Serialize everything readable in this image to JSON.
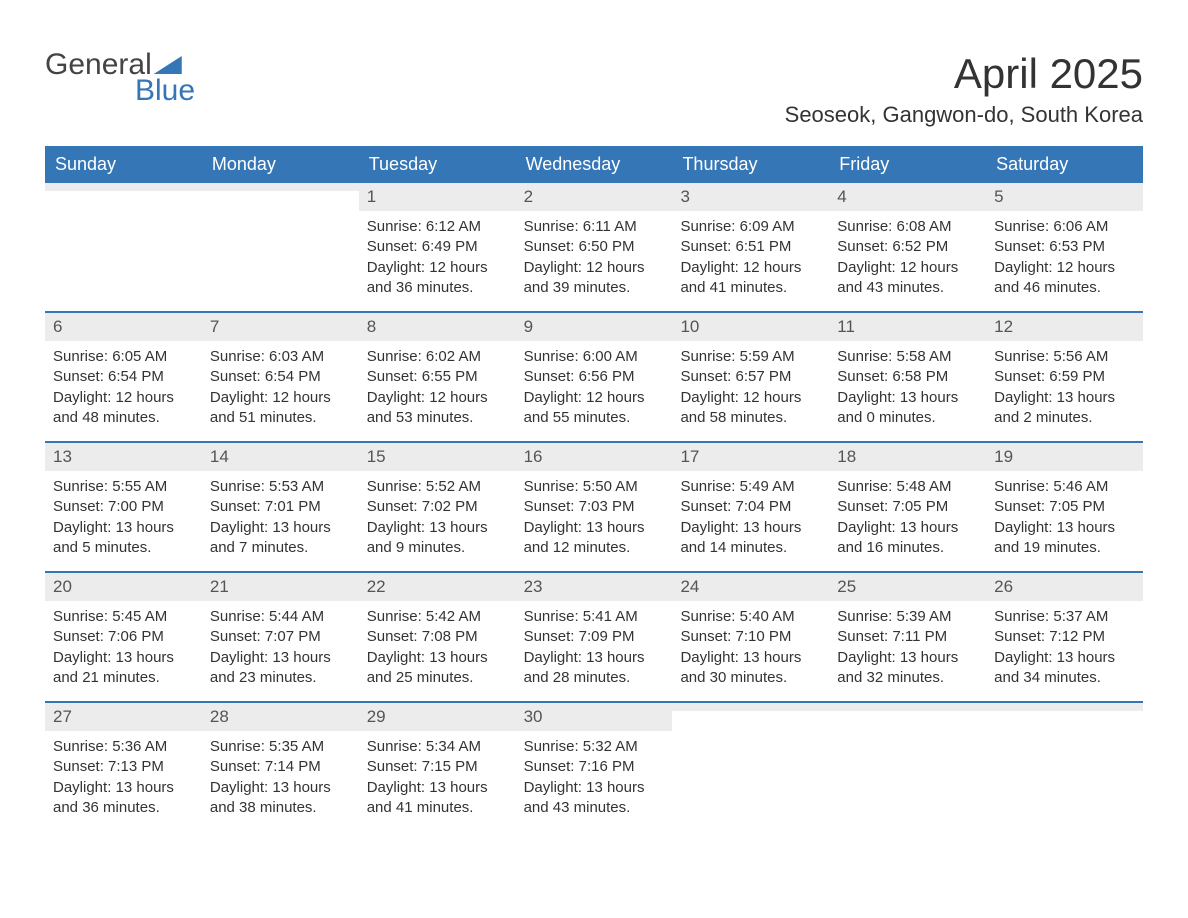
{
  "brand": {
    "word1": "General",
    "word2": "Blue"
  },
  "title": "April 2025",
  "location": "Seoseok, Gangwon-do, South Korea",
  "colors": {
    "header_bg": "#3476b6",
    "header_text": "#ffffff",
    "daynum_bg": "#ececec",
    "text": "#333333",
    "logo_gray": "#444444",
    "logo_blue": "#3476b6",
    "divider": "#3476b6"
  },
  "columns": [
    "Sunday",
    "Monday",
    "Tuesday",
    "Wednesday",
    "Thursday",
    "Friday",
    "Saturday"
  ],
  "weeks": [
    [
      {
        "day": "",
        "sunrise": "",
        "sunset": "",
        "daylight": "",
        "empty": true
      },
      {
        "day": "",
        "sunrise": "",
        "sunset": "",
        "daylight": "",
        "empty": true
      },
      {
        "day": "1",
        "sunrise": "Sunrise: 6:12 AM",
        "sunset": "Sunset: 6:49 PM",
        "daylight": "Daylight: 12 hours and 36 minutes."
      },
      {
        "day": "2",
        "sunrise": "Sunrise: 6:11 AM",
        "sunset": "Sunset: 6:50 PM",
        "daylight": "Daylight: 12 hours and 39 minutes."
      },
      {
        "day": "3",
        "sunrise": "Sunrise: 6:09 AM",
        "sunset": "Sunset: 6:51 PM",
        "daylight": "Daylight: 12 hours and 41 minutes."
      },
      {
        "day": "4",
        "sunrise": "Sunrise: 6:08 AM",
        "sunset": "Sunset: 6:52 PM",
        "daylight": "Daylight: 12 hours and 43 minutes."
      },
      {
        "day": "5",
        "sunrise": "Sunrise: 6:06 AM",
        "sunset": "Sunset: 6:53 PM",
        "daylight": "Daylight: 12 hours and 46 minutes."
      }
    ],
    [
      {
        "day": "6",
        "sunrise": "Sunrise: 6:05 AM",
        "sunset": "Sunset: 6:54 PM",
        "daylight": "Daylight: 12 hours and 48 minutes."
      },
      {
        "day": "7",
        "sunrise": "Sunrise: 6:03 AM",
        "sunset": "Sunset: 6:54 PM",
        "daylight": "Daylight: 12 hours and 51 minutes."
      },
      {
        "day": "8",
        "sunrise": "Sunrise: 6:02 AM",
        "sunset": "Sunset: 6:55 PM",
        "daylight": "Daylight: 12 hours and 53 minutes."
      },
      {
        "day": "9",
        "sunrise": "Sunrise: 6:00 AM",
        "sunset": "Sunset: 6:56 PM",
        "daylight": "Daylight: 12 hours and 55 minutes."
      },
      {
        "day": "10",
        "sunrise": "Sunrise: 5:59 AM",
        "sunset": "Sunset: 6:57 PM",
        "daylight": "Daylight: 12 hours and 58 minutes."
      },
      {
        "day": "11",
        "sunrise": "Sunrise: 5:58 AM",
        "sunset": "Sunset: 6:58 PM",
        "daylight": "Daylight: 13 hours and 0 minutes."
      },
      {
        "day": "12",
        "sunrise": "Sunrise: 5:56 AM",
        "sunset": "Sunset: 6:59 PM",
        "daylight": "Daylight: 13 hours and 2 minutes."
      }
    ],
    [
      {
        "day": "13",
        "sunrise": "Sunrise: 5:55 AM",
        "sunset": "Sunset: 7:00 PM",
        "daylight": "Daylight: 13 hours and 5 minutes."
      },
      {
        "day": "14",
        "sunrise": "Sunrise: 5:53 AM",
        "sunset": "Sunset: 7:01 PM",
        "daylight": "Daylight: 13 hours and 7 minutes."
      },
      {
        "day": "15",
        "sunrise": "Sunrise: 5:52 AM",
        "sunset": "Sunset: 7:02 PM",
        "daylight": "Daylight: 13 hours and 9 minutes."
      },
      {
        "day": "16",
        "sunrise": "Sunrise: 5:50 AM",
        "sunset": "Sunset: 7:03 PM",
        "daylight": "Daylight: 13 hours and 12 minutes."
      },
      {
        "day": "17",
        "sunrise": "Sunrise: 5:49 AM",
        "sunset": "Sunset: 7:04 PM",
        "daylight": "Daylight: 13 hours and 14 minutes."
      },
      {
        "day": "18",
        "sunrise": "Sunrise: 5:48 AM",
        "sunset": "Sunset: 7:05 PM",
        "daylight": "Daylight: 13 hours and 16 minutes."
      },
      {
        "day": "19",
        "sunrise": "Sunrise: 5:46 AM",
        "sunset": "Sunset: 7:05 PM",
        "daylight": "Daylight: 13 hours and 19 minutes."
      }
    ],
    [
      {
        "day": "20",
        "sunrise": "Sunrise: 5:45 AM",
        "sunset": "Sunset: 7:06 PM",
        "daylight": "Daylight: 13 hours and 21 minutes."
      },
      {
        "day": "21",
        "sunrise": "Sunrise: 5:44 AM",
        "sunset": "Sunset: 7:07 PM",
        "daylight": "Daylight: 13 hours and 23 minutes."
      },
      {
        "day": "22",
        "sunrise": "Sunrise: 5:42 AM",
        "sunset": "Sunset: 7:08 PM",
        "daylight": "Daylight: 13 hours and 25 minutes."
      },
      {
        "day": "23",
        "sunrise": "Sunrise: 5:41 AM",
        "sunset": "Sunset: 7:09 PM",
        "daylight": "Daylight: 13 hours and 28 minutes."
      },
      {
        "day": "24",
        "sunrise": "Sunrise: 5:40 AM",
        "sunset": "Sunset: 7:10 PM",
        "daylight": "Daylight: 13 hours and 30 minutes."
      },
      {
        "day": "25",
        "sunrise": "Sunrise: 5:39 AM",
        "sunset": "Sunset: 7:11 PM",
        "daylight": "Daylight: 13 hours and 32 minutes."
      },
      {
        "day": "26",
        "sunrise": "Sunrise: 5:37 AM",
        "sunset": "Sunset: 7:12 PM",
        "daylight": "Daylight: 13 hours and 34 minutes."
      }
    ],
    [
      {
        "day": "27",
        "sunrise": "Sunrise: 5:36 AM",
        "sunset": "Sunset: 7:13 PM",
        "daylight": "Daylight: 13 hours and 36 minutes."
      },
      {
        "day": "28",
        "sunrise": "Sunrise: 5:35 AM",
        "sunset": "Sunset: 7:14 PM",
        "daylight": "Daylight: 13 hours and 38 minutes."
      },
      {
        "day": "29",
        "sunrise": "Sunrise: 5:34 AM",
        "sunset": "Sunset: 7:15 PM",
        "daylight": "Daylight: 13 hours and 41 minutes."
      },
      {
        "day": "30",
        "sunrise": "Sunrise: 5:32 AM",
        "sunset": "Sunset: 7:16 PM",
        "daylight": "Daylight: 13 hours and 43 minutes."
      },
      {
        "day": "",
        "sunrise": "",
        "sunset": "",
        "daylight": "",
        "empty": true
      },
      {
        "day": "",
        "sunrise": "",
        "sunset": "",
        "daylight": "",
        "empty": true
      },
      {
        "day": "",
        "sunrise": "",
        "sunset": "",
        "daylight": "",
        "empty": true
      }
    ]
  ]
}
